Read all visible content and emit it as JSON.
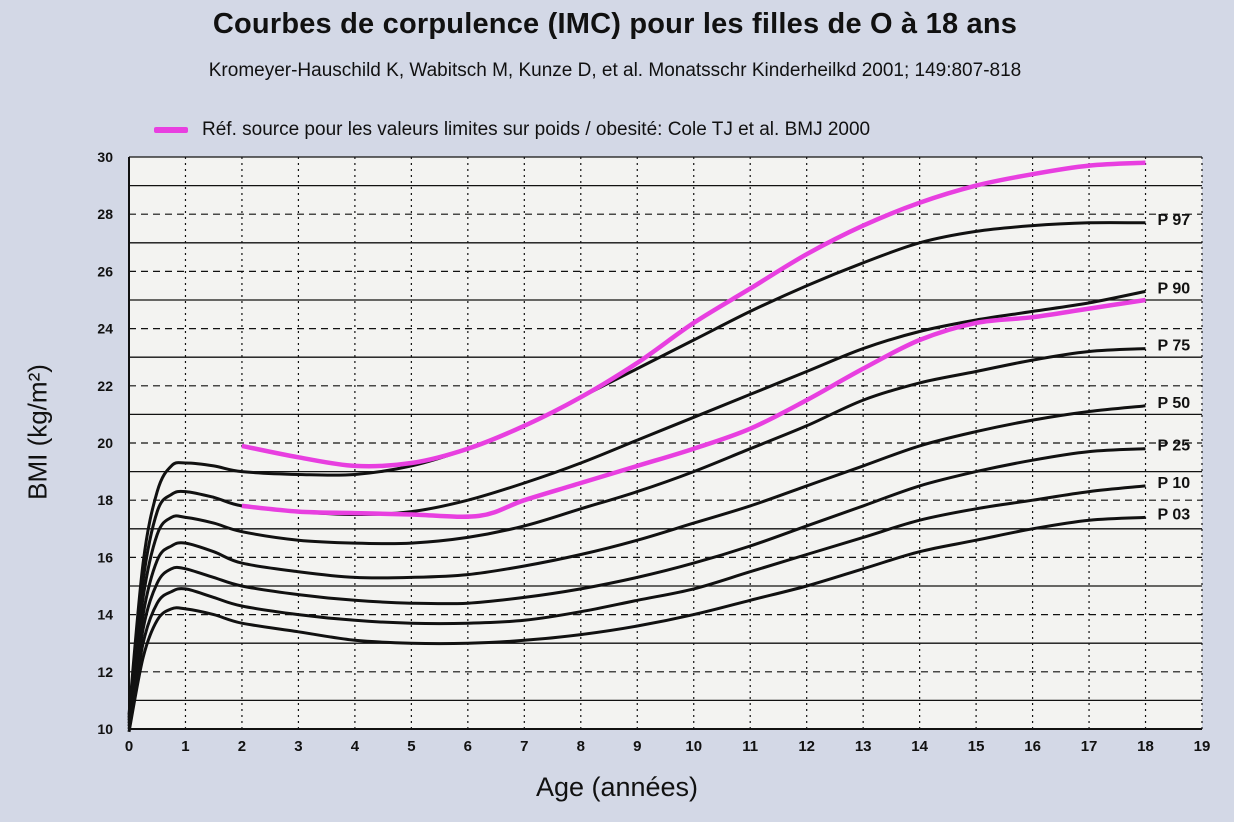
{
  "colors": {
    "background": "#d3d8e6",
    "plot_bg": "#f3f3f1",
    "curve": "#111111",
    "reference": "#e83fe0"
  },
  "chart_data": {
    "type": "line",
    "title": "Courbes de corpulence (IMC) pour les filles de O à 18 ans",
    "subtitle": "Kromeyer-Hauschild K, Wabitsch M, Kunze D, et al. Monatsschr Kinderheilkd 2001; 149:807-818",
    "legend": "Réf. source pour les valeurs limites sur poids / obesité: Cole TJ et al. BMJ 2000",
    "xlabel": "Age (années)",
    "ylabel": "BMI (kg/m²)",
    "xlim": [
      0,
      19
    ],
    "ylim": [
      10,
      30
    ],
    "xticks": [
      "0",
      "1",
      "2",
      "3",
      "4",
      "5",
      "6",
      "7",
      "8",
      "9",
      "10",
      "11",
      "12",
      "13",
      "14",
      "15",
      "16",
      "17",
      "18",
      "19"
    ],
    "yticks": [
      "10",
      "12",
      "14",
      "16",
      "18",
      "20",
      "22",
      "24",
      "26",
      "28",
      "30"
    ],
    "grid": true,
    "percentiles": [
      {
        "label": "P 97",
        "points": [
          [
            0,
            10.5
          ],
          [
            0.25,
            15.8
          ],
          [
            0.5,
            18.3
          ],
          [
            0.75,
            19.2
          ],
          [
            1,
            19.3
          ],
          [
            1.5,
            19.2
          ],
          [
            2,
            19.0
          ],
          [
            3,
            18.9
          ],
          [
            4,
            18.9
          ],
          [
            5,
            19.2
          ],
          [
            6,
            19.8
          ],
          [
            7,
            20.6
          ],
          [
            8,
            21.6
          ],
          [
            9,
            22.6
          ],
          [
            10,
            23.6
          ],
          [
            11,
            24.6
          ],
          [
            12,
            25.5
          ],
          [
            13,
            26.3
          ],
          [
            14,
            27.0
          ],
          [
            15,
            27.4
          ],
          [
            16,
            27.6
          ],
          [
            17,
            27.7
          ],
          [
            18,
            27.7
          ]
        ]
      },
      {
        "label": "P 90",
        "points": [
          [
            0,
            10.4
          ],
          [
            0.25,
            15.2
          ],
          [
            0.5,
            17.6
          ],
          [
            0.75,
            18.2
          ],
          [
            1,
            18.3
          ],
          [
            1.5,
            18.1
          ],
          [
            2,
            17.8
          ],
          [
            3,
            17.6
          ],
          [
            4,
            17.5
          ],
          [
            5,
            17.6
          ],
          [
            6,
            18.0
          ],
          [
            7,
            18.6
          ],
          [
            8,
            19.3
          ],
          [
            9,
            20.1
          ],
          [
            10,
            20.9
          ],
          [
            11,
            21.7
          ],
          [
            12,
            22.5
          ],
          [
            13,
            23.3
          ],
          [
            14,
            23.9
          ],
          [
            15,
            24.3
          ],
          [
            16,
            24.6
          ],
          [
            17,
            24.9
          ],
          [
            18,
            25.3
          ]
        ]
      },
      {
        "label": "P 75",
        "points": [
          [
            0,
            10.3
          ],
          [
            0.25,
            14.6
          ],
          [
            0.5,
            16.8
          ],
          [
            0.75,
            17.4
          ],
          [
            1,
            17.4
          ],
          [
            1.5,
            17.2
          ],
          [
            2,
            16.9
          ],
          [
            3,
            16.6
          ],
          [
            4,
            16.5
          ],
          [
            5,
            16.5
          ],
          [
            6,
            16.7
          ],
          [
            7,
            17.1
          ],
          [
            8,
            17.7
          ],
          [
            9,
            18.3
          ],
          [
            10,
            19.0
          ],
          [
            11,
            19.8
          ],
          [
            12,
            20.6
          ],
          [
            13,
            21.5
          ],
          [
            14,
            22.1
          ],
          [
            15,
            22.5
          ],
          [
            16,
            22.9
          ],
          [
            17,
            23.2
          ],
          [
            18,
            23.3
          ]
        ]
      },
      {
        "label": "P 50",
        "points": [
          [
            0,
            10.2
          ],
          [
            0.25,
            14.0
          ],
          [
            0.5,
            15.9
          ],
          [
            0.75,
            16.4
          ],
          [
            1,
            16.5
          ],
          [
            1.5,
            16.2
          ],
          [
            2,
            15.8
          ],
          [
            3,
            15.5
          ],
          [
            4,
            15.3
          ],
          [
            5,
            15.3
          ],
          [
            6,
            15.4
          ],
          [
            7,
            15.7
          ],
          [
            8,
            16.1
          ],
          [
            9,
            16.6
          ],
          [
            10,
            17.2
          ],
          [
            11,
            17.8
          ],
          [
            12,
            18.5
          ],
          [
            13,
            19.2
          ],
          [
            14,
            19.9
          ],
          [
            15,
            20.4
          ],
          [
            16,
            20.8
          ],
          [
            17,
            21.1
          ],
          [
            18,
            21.3
          ]
        ]
      },
      {
        "label": "P 25",
        "points": [
          [
            0,
            10.1
          ],
          [
            0.25,
            13.5
          ],
          [
            0.5,
            15.1
          ],
          [
            0.75,
            15.6
          ],
          [
            1,
            15.6
          ],
          [
            1.5,
            15.3
          ],
          [
            2,
            15.0
          ],
          [
            3,
            14.7
          ],
          [
            4,
            14.5
          ],
          [
            5,
            14.4
          ],
          [
            6,
            14.4
          ],
          [
            7,
            14.6
          ],
          [
            8,
            14.9
          ],
          [
            9,
            15.3
          ],
          [
            10,
            15.8
          ],
          [
            11,
            16.4
          ],
          [
            12,
            17.1
          ],
          [
            13,
            17.8
          ],
          [
            14,
            18.5
          ],
          [
            15,
            19.0
          ],
          [
            16,
            19.4
          ],
          [
            17,
            19.7
          ],
          [
            18,
            19.8
          ]
        ]
      },
      {
        "label": "P 10",
        "points": [
          [
            0,
            10.0
          ],
          [
            0.25,
            13.0
          ],
          [
            0.5,
            14.4
          ],
          [
            0.75,
            14.8
          ],
          [
            1,
            14.9
          ],
          [
            1.5,
            14.6
          ],
          [
            2,
            14.3
          ],
          [
            3,
            14.0
          ],
          [
            4,
            13.8
          ],
          [
            5,
            13.7
          ],
          [
            6,
            13.7
          ],
          [
            7,
            13.8
          ],
          [
            8,
            14.1
          ],
          [
            9,
            14.5
          ],
          [
            10,
            14.9
          ],
          [
            11,
            15.5
          ],
          [
            12,
            16.1
          ],
          [
            13,
            16.7
          ],
          [
            14,
            17.3
          ],
          [
            15,
            17.7
          ],
          [
            16,
            18.0
          ],
          [
            17,
            18.3
          ],
          [
            18,
            18.5
          ]
        ]
      },
      {
        "label": "P 03",
        "points": [
          [
            0,
            9.9
          ],
          [
            0.25,
            12.5
          ],
          [
            0.5,
            13.8
          ],
          [
            0.75,
            14.2
          ],
          [
            1,
            14.2
          ],
          [
            1.5,
            14.0
          ],
          [
            2,
            13.7
          ],
          [
            3,
            13.4
          ],
          [
            4,
            13.1
          ],
          [
            5,
            13.0
          ],
          [
            6,
            13.0
          ],
          [
            7,
            13.1
          ],
          [
            8,
            13.3
          ],
          [
            9,
            13.6
          ],
          [
            10,
            14.0
          ],
          [
            11,
            14.5
          ],
          [
            12,
            15.0
          ],
          [
            13,
            15.6
          ],
          [
            14,
            16.2
          ],
          [
            15,
            16.6
          ],
          [
            16,
            17.0
          ],
          [
            17,
            17.3
          ],
          [
            18,
            17.4
          ]
        ]
      }
    ],
    "reference_curves": [
      {
        "points": [
          [
            2,
            19.9
          ],
          [
            3,
            19.5
          ],
          [
            4,
            19.2
          ],
          [
            5,
            19.3
          ],
          [
            6,
            19.8
          ],
          [
            7,
            20.6
          ],
          [
            8,
            21.6
          ],
          [
            9,
            22.8
          ],
          [
            10,
            24.2
          ],
          [
            11,
            25.4
          ],
          [
            12,
            26.6
          ],
          [
            13,
            27.6
          ],
          [
            14,
            28.4
          ],
          [
            15,
            29.0
          ],
          [
            16,
            29.4
          ],
          [
            17,
            29.7
          ],
          [
            18,
            29.8
          ]
        ]
      },
      {
        "points": [
          [
            2,
            17.8
          ],
          [
            3,
            17.6
          ],
          [
            4,
            17.55
          ],
          [
            5,
            17.5
          ],
          [
            6.2,
            17.45
          ],
          [
            7,
            18.0
          ],
          [
            8,
            18.6
          ],
          [
            9,
            19.2
          ],
          [
            10,
            19.8
          ],
          [
            11,
            20.5
          ],
          [
            12,
            21.5
          ],
          [
            13,
            22.6
          ],
          [
            14,
            23.6
          ],
          [
            15,
            24.2
          ],
          [
            16,
            24.4
          ],
          [
            17,
            24.7
          ],
          [
            18,
            25.0
          ]
        ]
      }
    ]
  }
}
